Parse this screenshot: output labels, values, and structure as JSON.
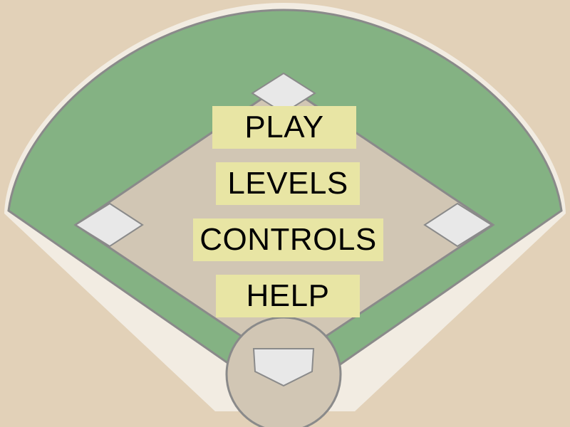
{
  "colors": {
    "background": "#e2d1b8",
    "outfield_edge": "#f2ece2",
    "grass": "#84b283",
    "infield_dirt": "#d1c6b4",
    "line": "#8a8a8a",
    "base": "#e8e8e8",
    "button_bg": "#e8e5a4",
    "button_text": "#000000"
  },
  "menu": {
    "items": [
      {
        "id": "play",
        "label": "PLAY"
      },
      {
        "id": "levels",
        "label": "LEVELS"
      },
      {
        "id": "controls",
        "label": "CONTROLS"
      },
      {
        "id": "help",
        "label": "HELP"
      }
    ]
  },
  "field": {
    "type": "baseball-diamond",
    "bases": [
      "second-base",
      "first-base",
      "third-base",
      "home-plate"
    ]
  }
}
